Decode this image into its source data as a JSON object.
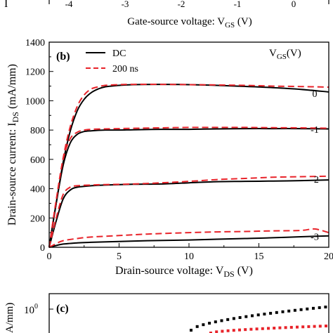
{
  "top_partial": {
    "left_glyph": "I",
    "tick_labels": [
      "-4",
      "-3",
      "-2",
      "-1",
      "0"
    ],
    "xlabel_main": "Gate-source voltage: V",
    "xlabel_sub": "GS",
    "xlabel_unit": " (V)"
  },
  "chart_data": [
    {
      "type": "line",
      "panel_label": "(b)",
      "xlabel_main": "Drain-source voltage: V",
      "xlabel_sub": "DS",
      "xlabel_unit": " (V)",
      "ylabel_main": "Drain-source current: I",
      "ylabel_sub": "DS",
      "ylabel_unit": " (mA/mm)",
      "xlim": [
        0,
        20
      ],
      "ylim": [
        0,
        1400
      ],
      "xticks": [
        0,
        5,
        10,
        15,
        20
      ],
      "yticks": [
        0,
        200,
        400,
        600,
        800,
        1000,
        1200,
        1400
      ],
      "legend_position": "top-left",
      "legend": [
        {
          "label": "DC",
          "style": "solid",
          "color": "#000000"
        },
        {
          "label": "200 ns",
          "style": "dashed",
          "color": "#e8232a"
        }
      ],
      "vgs_header_main": "V",
      "vgs_header_sub": "GS",
      "vgs_header_unit": "(V)",
      "curve_labels": [
        {
          "text": "0",
          "y": 1050
        },
        {
          "text": "-1",
          "y": 805
        },
        {
          "text": "-2",
          "y": 465
        },
        {
          "text": "-3",
          "y": 75
        }
      ],
      "series": [
        {
          "name": "DC",
          "vgs": "0",
          "style": "solid",
          "color": "#000000",
          "x": [
            0,
            0.5,
            1,
            1.5,
            2,
            2.5,
            3,
            3.5,
            4,
            5,
            6,
            8,
            10,
            12,
            14,
            16,
            18,
            20
          ],
          "y": [
            0,
            300,
            580,
            790,
            930,
            1010,
            1055,
            1080,
            1095,
            1105,
            1110,
            1112,
            1110,
            1105,
            1098,
            1090,
            1078,
            1060
          ]
        },
        {
          "name": "200 ns",
          "vgs": "0",
          "style": "dashed",
          "color": "#e8232a",
          "x": [
            0,
            0.5,
            1,
            1.5,
            2,
            2.5,
            3,
            3.5,
            4,
            5,
            6,
            8,
            10,
            12,
            14,
            16,
            18,
            20
          ],
          "y": [
            0,
            320,
            610,
            820,
            960,
            1040,
            1080,
            1095,
            1105,
            1110,
            1112,
            1112,
            1110,
            1108,
            1105,
            1100,
            1097,
            1093
          ]
        },
        {
          "name": "DC",
          "vgs": "-1",
          "style": "solid",
          "color": "#000000",
          "x": [
            0,
            0.5,
            1,
            1.5,
            2,
            2.5,
            3,
            4,
            5,
            6,
            8,
            10,
            12,
            14,
            16,
            18,
            20
          ],
          "y": [
            0,
            300,
            560,
            710,
            770,
            790,
            795,
            800,
            800,
            802,
            805,
            805,
            808,
            810,
            810,
            810,
            808
          ]
        },
        {
          "name": "200 ns",
          "vgs": "-1",
          "style": "dashed",
          "color": "#e8232a",
          "x": [
            0,
            0.5,
            1,
            1.5,
            2,
            2.5,
            3,
            4,
            5,
            6,
            8,
            10,
            12,
            14,
            16,
            18,
            20
          ],
          "y": [
            0,
            320,
            600,
            740,
            785,
            800,
            805,
            808,
            810,
            812,
            815,
            818,
            818,
            818,
            816,
            815,
            812
          ]
        },
        {
          "name": "DC",
          "vgs": "-2",
          "style": "solid",
          "color": "#000000",
          "x": [
            0,
            0.5,
            1,
            1.5,
            2,
            3,
            4,
            6,
            8,
            10,
            12,
            14,
            16,
            18,
            20
          ],
          "y": [
            0,
            180,
            330,
            390,
            410,
            420,
            425,
            430,
            432,
            440,
            448,
            450,
            452,
            455,
            460
          ]
        },
        {
          "name": "200 ns",
          "vgs": "-2",
          "style": "dashed",
          "color": "#e8232a",
          "x": [
            0,
            0.5,
            1,
            1.5,
            2,
            3,
            4,
            6,
            8,
            10,
            12,
            14,
            16,
            18,
            20
          ],
          "y": [
            0,
            200,
            360,
            410,
            420,
            425,
            428,
            432,
            440,
            450,
            462,
            470,
            478,
            482,
            485
          ]
        },
        {
          "name": "DC",
          "vgs": "-3",
          "style": "solid",
          "color": "#000000",
          "x": [
            0,
            0.5,
            1,
            2,
            3,
            5,
            7,
            10,
            12,
            14,
            16,
            18,
            20
          ],
          "y": [
            0,
            12,
            22,
            30,
            34,
            40,
            45,
            50,
            55,
            60,
            65,
            72,
            78
          ]
        },
        {
          "name": "200 ns",
          "vgs": "-3",
          "style": "dashed",
          "color": "#e8232a",
          "x": [
            0,
            0.5,
            1,
            2,
            3,
            5,
            7,
            10,
            12,
            14,
            16,
            18,
            19,
            20
          ],
          "y": [
            0,
            25,
            45,
            60,
            70,
            80,
            90,
            100,
            105,
            108,
            112,
            115,
            125,
            100
          ]
        }
      ]
    },
    {
      "type": "line",
      "panel_label": "(c)",
      "ylabel_partial_main": "A/mm)",
      "ytick_base": "10",
      "ytick_exp": "0",
      "series": [
        {
          "name": "",
          "color": "#000000",
          "marker": "square"
        },
        {
          "name": "",
          "color": "#e8232a",
          "marker": "square"
        }
      ]
    }
  ]
}
